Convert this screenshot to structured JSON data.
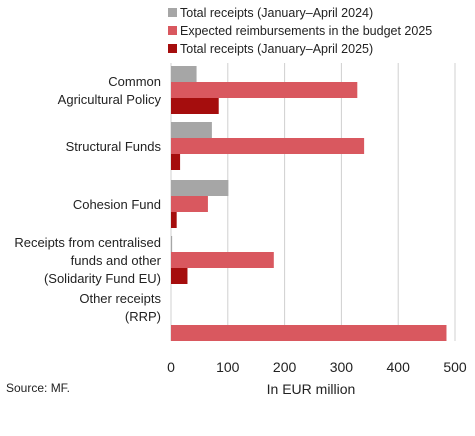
{
  "chart_data": {
    "type": "bar",
    "orientation": "horizontal",
    "categories": [
      [
        "Common",
        "Agricultural Policy"
      ],
      [
        "Structural Funds"
      ],
      [
        "Cohesion Fund"
      ],
      [
        "Receipts from centralised",
        "funds and other",
        "(Solidarity Fund EU)"
      ],
      [
        "Other receipts",
        "(RRP)"
      ]
    ],
    "series": [
      {
        "name": "Total receipts (January–April 2024)",
        "color": "#a6a6a6",
        "values": [
          45,
          72,
          101,
          2,
          0
        ]
      },
      {
        "name": "Expected reimbursements in the budget 2025",
        "color": "#d9585f",
        "values": [
          328,
          340,
          65,
          181,
          485
        ]
      },
      {
        "name": "Total receipts (January–April 2025)",
        "color": "#a50d0d",
        "values": [
          84,
          16,
          10,
          29,
          0
        ]
      }
    ],
    "xlabel": "In EUR million",
    "ylabel": "",
    "xlim": [
      0,
      500
    ],
    "xticks": [
      0,
      100,
      200,
      300,
      400,
      500
    ],
    "grid": true,
    "legend_position": "top"
  },
  "source": "Source: MF."
}
